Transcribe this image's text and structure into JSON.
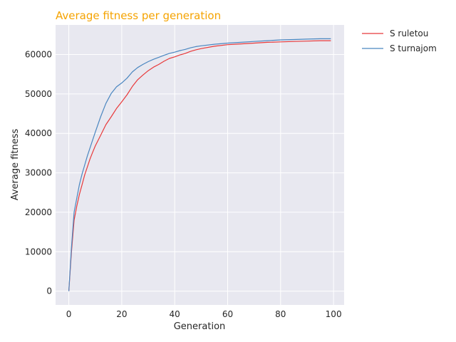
{
  "chart_data": {
    "type": "line",
    "title": "Average fitness per generation",
    "xlabel": "Generation",
    "ylabel": "Average fitness",
    "xlim": [
      -5,
      104
    ],
    "ylim": [
      -3500,
      67500
    ],
    "xticks": [
      0,
      20,
      40,
      60,
      80,
      100
    ],
    "yticks": [
      0,
      10000,
      20000,
      30000,
      40000,
      50000,
      60000
    ],
    "xtick_labels": [
      "0",
      "20",
      "40",
      "60",
      "80",
      "100"
    ],
    "ytick_labels": [
      "0",
      "10000",
      "20000",
      "30000",
      "40000",
      "50000",
      "60000"
    ],
    "grid": true,
    "legend_position": "outside-top-right",
    "background": "#e8e8f0",
    "title_color": "#f5a300",
    "x": [
      0,
      1,
      2,
      3,
      4,
      5,
      6,
      7,
      8,
      9,
      10,
      12,
      14,
      16,
      18,
      20,
      22,
      24,
      26,
      28,
      30,
      32,
      34,
      36,
      38,
      40,
      42,
      44,
      46,
      48,
      50,
      55,
      60,
      65,
      70,
      75,
      80,
      85,
      90,
      95,
      99
    ],
    "series": [
      {
        "name": "S ruletou",
        "color": "#e8393a",
        "values": [
          0,
          10000,
          18000,
          21500,
          24500,
          27000,
          29500,
          31500,
          33500,
          35200,
          36800,
          39500,
          42200,
          44200,
          46300,
          48000,
          49800,
          51900,
          53600,
          54800,
          55900,
          56800,
          57500,
          58300,
          59000,
          59400,
          59900,
          60300,
          60800,
          61200,
          61500,
          62100,
          62500,
          62700,
          62900,
          63100,
          63200,
          63300,
          63400,
          63500,
          63500
        ]
      },
      {
        "name": "S turnajom",
        "color": "#4a86c0",
        "values": [
          0,
          11000,
          20000,
          23500,
          27000,
          29700,
          32000,
          34300,
          36300,
          38300,
          40300,
          44200,
          47600,
          50100,
          51800,
          52800,
          54000,
          55600,
          56700,
          57500,
          58200,
          58800,
          59300,
          59800,
          60300,
          60600,
          61000,
          61300,
          61700,
          62000,
          62200,
          62600,
          62900,
          63100,
          63300,
          63500,
          63700,
          63800,
          63900,
          64000,
          64000
        ]
      }
    ]
  }
}
